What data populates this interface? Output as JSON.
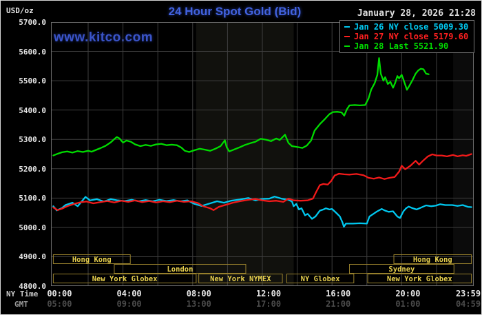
{
  "header": {
    "unit_label": "USD/oz",
    "title": "24 Hour Spot Gold (Bid)",
    "datetime": "January 28, 2026 21:28",
    "watermark": "www.kitco.com"
  },
  "legend": {
    "items": [
      {
        "label": "Jan 26 NY close 5009.30",
        "color": "#00c8f0"
      },
      {
        "label": "Jan 27 NY close 5179.60",
        "color": "#ff2020"
      },
      {
        "label": "Jan 28 Last 5521.90",
        "color": "#00dc00"
      }
    ]
  },
  "axes": {
    "ny_label": "NY Time",
    "gmt_label": "GMT"
  },
  "colors": {
    "grid": "#3f3f3f",
    "frame": "#6e6e6e",
    "band1": "rgba(235,235,190,0.07)",
    "band2": "rgba(255,255,255,0.045)",
    "session_border": "#97802c",
    "session_text": "#e6cf4e"
  },
  "chart_data": {
    "type": "line",
    "title": "24 Hour Spot Gold (Bid)",
    "x_axis": {
      "range_hours": [
        0,
        24
      ],
      "gridline_every_hours": 2,
      "ticks": [
        {
          "hour": 0,
          "ny": "00:00",
          "gmt": "05:00"
        },
        {
          "hour": 4,
          "ny": "04:00",
          "gmt": "09:00"
        },
        {
          "hour": 8,
          "ny": "08:00",
          "gmt": "13:00"
        },
        {
          "hour": 12,
          "ny": "12:00",
          "gmt": "17:00"
        },
        {
          "hour": 16,
          "ny": "16:00",
          "gmt": "21:00"
        },
        {
          "hour": 20,
          "ny": "20:00",
          "gmt": "01:00"
        },
        {
          "hour": 23.983,
          "ny": "23:59",
          "gmt": "04:59"
        }
      ]
    },
    "y_axis": {
      "unit": "USD/oz",
      "min": 4800,
      "max": 5700,
      "tick_step": 100,
      "tick_labels": [
        "5700.0",
        "5600.0",
        "5500.0",
        "5400.0",
        "5300.0",
        "5200.0",
        "5100.0",
        "5000.0",
        "4900.0",
        "4800.0"
      ]
    },
    "shaded_bands": [
      {
        "start_hour": 8.2,
        "end_hour": 13.8
      },
      {
        "start_hour": 22.95,
        "end_hour": 24.2
      }
    ],
    "sessions": [
      {
        "row": 0,
        "label": "Hong Kong",
        "start_hour": 0,
        "end_hour": 4.42
      },
      {
        "row": 0,
        "label": "Hong Kong",
        "start_hour": 19.55,
        "end_hour": 24
      },
      {
        "row": 1,
        "label": "London",
        "start_hour": 3.5,
        "end_hour": 11.05
      },
      {
        "row": 1,
        "label": "Sydney",
        "start_hour": 17.0,
        "end_hour": 23.0
      },
      {
        "row": 2,
        "label": "New York Globex",
        "start_hour": 0,
        "end_hour": 8.2
      },
      {
        "row": 2,
        "label": "New York NYMEX",
        "start_hour": 8.35,
        "end_hour": 13.15
      },
      {
        "row": 2,
        "label": "NY Globex",
        "start_hour": 13.4,
        "end_hour": 17.25
      },
      {
        "row": 2,
        "label": "New York Globex",
        "start_hour": 18.05,
        "end_hour": 24
      }
    ],
    "series": [
      {
        "name": "Jan 26 NY close",
        "close_value": "5009.30",
        "color": "#00c8f0",
        "points": [
          [
            0,
            5072
          ],
          [
            0.2,
            5058
          ],
          [
            0.5,
            5066
          ],
          [
            0.7,
            5076
          ],
          [
            1.1,
            5084
          ],
          [
            1.4,
            5072
          ],
          [
            1.85,
            5104
          ],
          [
            2.1,
            5092
          ],
          [
            2.5,
            5096
          ],
          [
            2.9,
            5088
          ],
          [
            3.3,
            5096
          ],
          [
            3.7,
            5092
          ],
          [
            4.1,
            5090
          ],
          [
            4.5,
            5094
          ],
          [
            4.9,
            5089
          ],
          [
            5.3,
            5093
          ],
          [
            5.7,
            5089
          ],
          [
            6.1,
            5094
          ],
          [
            6.5,
            5090
          ],
          [
            6.9,
            5093
          ],
          [
            7.3,
            5089
          ],
          [
            7.7,
            5092
          ],
          [
            8.1,
            5080
          ],
          [
            8.5,
            5073
          ],
          [
            8.9,
            5080
          ],
          [
            9.4,
            5089
          ],
          [
            9.8,
            5084
          ],
          [
            10.2,
            5091
          ],
          [
            10.7,
            5095
          ],
          [
            11.2,
            5100
          ],
          [
            11.6,
            5092
          ],
          [
            12.0,
            5097
          ],
          [
            12.4,
            5098
          ],
          [
            12.7,
            5105
          ],
          [
            13.1,
            5098
          ],
          [
            13.5,
            5094
          ],
          [
            13.7,
            5088
          ],
          [
            13.8,
            5072
          ],
          [
            13.95,
            5080
          ],
          [
            14.1,
            5061
          ],
          [
            14.25,
            5065
          ],
          [
            14.45,
            5041
          ],
          [
            14.6,
            5046
          ],
          [
            14.85,
            5029
          ],
          [
            15.05,
            5037
          ],
          [
            15.3,
            5057
          ],
          [
            15.5,
            5061
          ],
          [
            15.65,
            5065
          ],
          [
            15.85,
            5061
          ],
          [
            16.0,
            5063
          ],
          [
            16.25,
            5049
          ],
          [
            16.45,
            5037
          ],
          [
            16.6,
            5017
          ],
          [
            16.68,
            5002
          ],
          [
            16.8,
            5013
          ],
          [
            17.2,
            5013
          ],
          [
            17.6,
            5014
          ],
          [
            18.0,
            5013
          ],
          [
            18.15,
            5037
          ],
          [
            18.35,
            5045
          ],
          [
            18.55,
            5053
          ],
          [
            18.85,
            5063
          ],
          [
            19.05,
            5057
          ],
          [
            19.25,
            5053
          ],
          [
            19.5,
            5055
          ],
          [
            19.75,
            5037
          ],
          [
            19.9,
            5032
          ],
          [
            20.1,
            5055
          ],
          [
            20.25,
            5065
          ],
          [
            20.4,
            5071
          ],
          [
            20.6,
            5066
          ],
          [
            20.85,
            5061
          ],
          [
            21.05,
            5066
          ],
          [
            21.4,
            5075
          ],
          [
            21.7,
            5072
          ],
          [
            21.95,
            5074
          ],
          [
            22.2,
            5079
          ],
          [
            22.5,
            5076
          ],
          [
            22.9,
            5076
          ],
          [
            23.2,
            5073
          ],
          [
            23.5,
            5076
          ],
          [
            23.8,
            5070
          ],
          [
            24,
            5069
          ]
        ]
      },
      {
        "name": "Jan 27 NY close",
        "close_value": "5179.60",
        "color": "#f21a1a",
        "points": [
          [
            0,
            5068
          ],
          [
            0.25,
            5059
          ],
          [
            0.5,
            5064
          ],
          [
            0.8,
            5072
          ],
          [
            1.2,
            5080
          ],
          [
            1.6,
            5086
          ],
          [
            1.9,
            5088
          ],
          [
            2.3,
            5082
          ],
          [
            2.7,
            5086
          ],
          [
            3.1,
            5090
          ],
          [
            3.5,
            5085
          ],
          [
            3.9,
            5091
          ],
          [
            4.3,
            5087
          ],
          [
            4.7,
            5092
          ],
          [
            5.1,
            5086
          ],
          [
            5.5,
            5090
          ],
          [
            5.9,
            5085
          ],
          [
            6.3,
            5089
          ],
          [
            6.7,
            5086
          ],
          [
            7.1,
            5091
          ],
          [
            7.5,
            5087
          ],
          [
            7.9,
            5089
          ],
          [
            8.3,
            5083
          ],
          [
            8.6,
            5072
          ],
          [
            9.0,
            5065
          ],
          [
            9.2,
            5059
          ],
          [
            9.5,
            5070
          ],
          [
            9.9,
            5077
          ],
          [
            10.3,
            5084
          ],
          [
            10.7,
            5089
          ],
          [
            11.2,
            5094
          ],
          [
            11.6,
            5097
          ],
          [
            12.0,
            5092
          ],
          [
            12.4,
            5089
          ],
          [
            12.8,
            5091
          ],
          [
            13.2,
            5087
          ],
          [
            13.5,
            5098
          ],
          [
            13.8,
            5092
          ],
          [
            14.2,
            5091
          ],
          [
            14.6,
            5092
          ],
          [
            14.9,
            5098
          ],
          [
            15.1,
            5122
          ],
          [
            15.3,
            5144
          ],
          [
            15.5,
            5148
          ],
          [
            15.75,
            5146
          ],
          [
            15.95,
            5158
          ],
          [
            16.15,
            5177
          ],
          [
            16.4,
            5183
          ],
          [
            16.7,
            5181
          ],
          [
            17.0,
            5180
          ],
          [
            17.4,
            5182
          ],
          [
            17.8,
            5178
          ],
          [
            18.1,
            5169
          ],
          [
            18.4,
            5166
          ],
          [
            18.7,
            5170
          ],
          [
            19.0,
            5165
          ],
          [
            19.3,
            5169
          ],
          [
            19.6,
            5172
          ],
          [
            19.85,
            5190
          ],
          [
            20.0,
            5210
          ],
          [
            20.2,
            5198
          ],
          [
            20.5,
            5210
          ],
          [
            20.8,
            5227
          ],
          [
            21.0,
            5214
          ],
          [
            21.2,
            5226
          ],
          [
            21.5,
            5242
          ],
          [
            21.75,
            5249
          ],
          [
            22.0,
            5245
          ],
          [
            22.3,
            5245
          ],
          [
            22.6,
            5242
          ],
          [
            22.95,
            5247
          ],
          [
            23.2,
            5242
          ],
          [
            23.5,
            5246
          ],
          [
            23.7,
            5244
          ],
          [
            24,
            5250
          ]
        ]
      },
      {
        "name": "Jan 28 Last",
        "close_value": "5521.90",
        "color": "#00dc00",
        "points": [
          [
            0,
            5245
          ],
          [
            0.25,
            5251
          ],
          [
            0.5,
            5256
          ],
          [
            0.8,
            5259
          ],
          [
            1.1,
            5255
          ],
          [
            1.4,
            5260
          ],
          [
            1.7,
            5257
          ],
          [
            2.0,
            5261
          ],
          [
            2.2,
            5258
          ],
          [
            2.45,
            5264
          ],
          [
            2.7,
            5270
          ],
          [
            3.0,
            5278
          ],
          [
            3.3,
            5290
          ],
          [
            3.5,
            5301
          ],
          [
            3.65,
            5308
          ],
          [
            3.8,
            5303
          ],
          [
            4.0,
            5289
          ],
          [
            4.2,
            5296
          ],
          [
            4.45,
            5292
          ],
          [
            4.7,
            5283
          ],
          [
            5.0,
            5277
          ],
          [
            5.3,
            5281
          ],
          [
            5.6,
            5278
          ],
          [
            5.9,
            5283
          ],
          [
            6.2,
            5285
          ],
          [
            6.5,
            5280
          ],
          [
            6.8,
            5282
          ],
          [
            7.1,
            5280
          ],
          [
            7.35,
            5272
          ],
          [
            7.55,
            5261
          ],
          [
            7.8,
            5257
          ],
          [
            8.1,
            5263
          ],
          [
            8.4,
            5268
          ],
          [
            8.7,
            5265
          ],
          [
            9.0,
            5261
          ],
          [
            9.3,
            5268
          ],
          [
            9.6,
            5277
          ],
          [
            9.85,
            5297
          ],
          [
            9.95,
            5274
          ],
          [
            10.1,
            5259
          ],
          [
            10.4,
            5266
          ],
          [
            10.7,
            5273
          ],
          [
            11.0,
            5281
          ],
          [
            11.3,
            5287
          ],
          [
            11.6,
            5292
          ],
          [
            11.9,
            5302
          ],
          [
            12.2,
            5299
          ],
          [
            12.5,
            5294
          ],
          [
            12.8,
            5303
          ],
          [
            13.0,
            5298
          ],
          [
            13.3,
            5316
          ],
          [
            13.5,
            5288
          ],
          [
            13.7,
            5277
          ],
          [
            14.0,
            5274
          ],
          [
            14.3,
            5271
          ],
          [
            14.55,
            5279
          ],
          [
            14.8,
            5296
          ],
          [
            15.0,
            5330
          ],
          [
            15.3,
            5352
          ],
          [
            15.6,
            5370
          ],
          [
            15.85,
            5386
          ],
          [
            16.05,
            5393
          ],
          [
            16.3,
            5394
          ],
          [
            16.55,
            5392
          ],
          [
            16.7,
            5381
          ],
          [
            16.85,
            5402
          ],
          [
            17.0,
            5416
          ],
          [
            17.3,
            5417
          ],
          [
            17.6,
            5416
          ],
          [
            17.9,
            5417
          ],
          [
            18.1,
            5440
          ],
          [
            18.25,
            5470
          ],
          [
            18.45,
            5492
          ],
          [
            18.6,
            5520
          ],
          [
            18.7,
            5577
          ],
          [
            18.8,
            5524
          ],
          [
            18.95,
            5500
          ],
          [
            19.05,
            5512
          ],
          [
            19.2,
            5489
          ],
          [
            19.35,
            5496
          ],
          [
            19.5,
            5476
          ],
          [
            19.62,
            5492
          ],
          [
            19.75,
            5516
          ],
          [
            19.85,
            5508
          ],
          [
            20.0,
            5520
          ],
          [
            20.1,
            5504
          ],
          [
            20.3,
            5469
          ],
          [
            20.45,
            5484
          ],
          [
            20.6,
            5500
          ],
          [
            20.8,
            5524
          ],
          [
            20.95,
            5535
          ],
          [
            21.1,
            5541
          ],
          [
            21.25,
            5539
          ],
          [
            21.4,
            5524
          ],
          [
            21.55,
            5522
          ]
        ]
      }
    ]
  }
}
